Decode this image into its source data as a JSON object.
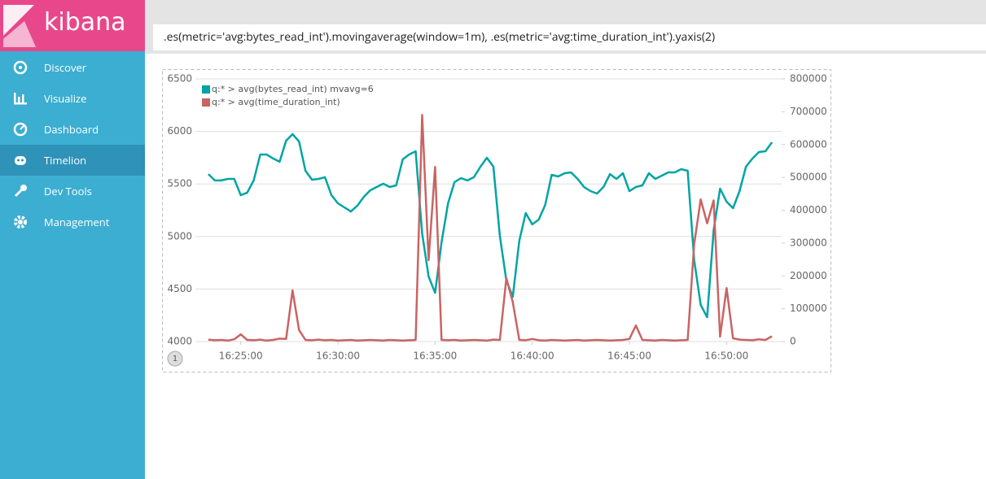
{
  "app": {
    "logo": "kibana",
    "nav": {
      "items": [
        "Discover",
        "Visualize",
        "Dashboard",
        "Timelion",
        "Dev Tools",
        "Management"
      ],
      "active_index": 3
    }
  },
  "query": ".es(metric='avg:bytes_read_int').movingaverage(window=1m), .es(metric='avg:time_duration_int').yaxis(2)",
  "sheet_index": "1",
  "chart_data": {
    "type": "line",
    "x": [
      "16:23:20",
      "16:23:40",
      "16:24:00",
      "16:24:20",
      "16:24:40",
      "16:25:00",
      "16:25:20",
      "16:25:40",
      "16:26:00",
      "16:26:20",
      "16:26:40",
      "16:27:00",
      "16:27:20",
      "16:27:40",
      "16:28:00",
      "16:28:20",
      "16:28:40",
      "16:29:00",
      "16:29:20",
      "16:29:40",
      "16:30:00",
      "16:30:20",
      "16:30:40",
      "16:31:00",
      "16:31:20",
      "16:31:40",
      "16:32:00",
      "16:32:20",
      "16:32:40",
      "16:33:00",
      "16:33:20",
      "16:33:40",
      "16:34:00",
      "16:34:20",
      "16:34:40",
      "16:35:00",
      "16:35:20",
      "16:35:40",
      "16:36:00",
      "16:36:20",
      "16:36:40",
      "16:37:00",
      "16:37:20",
      "16:37:40",
      "16:38:00",
      "16:38:20",
      "16:38:40",
      "16:39:00",
      "16:39:20",
      "16:39:40",
      "16:40:00",
      "16:40:20",
      "16:40:40",
      "16:41:00",
      "16:41:20",
      "16:41:40",
      "16:42:00",
      "16:42:20",
      "16:42:40",
      "16:43:00",
      "16:43:20",
      "16:43:40",
      "16:44:00",
      "16:44:20",
      "16:44:40",
      "16:45:00",
      "16:45:20",
      "16:45:40",
      "16:46:00",
      "16:46:20",
      "16:46:40",
      "16:47:00",
      "16:47:20",
      "16:47:40",
      "16:48:00",
      "16:48:20",
      "16:48:40",
      "16:49:00",
      "16:49:20",
      "16:49:40",
      "16:50:00",
      "16:50:20",
      "16:50:40",
      "16:51:00",
      "16:51:20",
      "16:51:40",
      "16:52:00",
      "16:52:20"
    ],
    "series": [
      {
        "name": "q:* > avg(bytes_read_int) mvavg=6",
        "color": "#01a4a4",
        "values": [
          5594,
          5533,
          5533,
          5548,
          5548,
          5393,
          5417,
          5533,
          5780,
          5780,
          5742,
          5711,
          5912,
          5974,
          5904,
          5625,
          5540,
          5548,
          5564,
          5393,
          5316,
          5277,
          5238,
          5293,
          5378,
          5440,
          5471,
          5502,
          5471,
          5486,
          5734,
          5780,
          5811,
          5029,
          4619,
          4464,
          4944,
          5316,
          5517,
          5556,
          5533,
          5564,
          5664,
          5749,
          5664,
          5006,
          4581,
          4426,
          4960,
          5223,
          5115,
          5161,
          5300,
          5587,
          5571,
          5602,
          5610,
          5548,
          5471,
          5432,
          5409,
          5471,
          5594,
          5548,
          5602,
          5432,
          5471,
          5486,
          5602,
          5548,
          5579,
          5610,
          5610,
          5641,
          5625,
          4774,
          4348,
          4232,
          5060,
          5455,
          5331,
          5269,
          5432,
          5664,
          5742,
          5804,
          5811,
          5896
        ]
      },
      {
        "name": "q:* > avg(time_duration_int)",
        "color": "#c96464",
        "axis": "y2",
        "values": [
          6000,
          4000,
          5000,
          3000,
          7000,
          22000,
          5000,
          4000,
          6000,
          3000,
          5000,
          9000,
          8000,
          156000,
          35000,
          5000,
          4000,
          6000,
          4000,
          5000,
          3000,
          4000,
          5000,
          3000,
          4000,
          5000,
          4000,
          3000,
          5000,
          4000,
          3000,
          4000,
          5000,
          690000,
          248000,
          532000,
          5000,
          4000,
          5000,
          3000,
          4000,
          5000,
          4000,
          3000,
          6000,
          5000,
          193000,
          120000,
          5000,
          4000,
          8000,
          4000,
          3000,
          5000,
          4000,
          3000,
          4000,
          5000,
          3000,
          4000,
          5000,
          4000,
          3000,
          4000,
          5000,
          8000,
          49000,
          5000,
          4000,
          3000,
          5000,
          4000,
          3000,
          4000,
          5000,
          297000,
          433000,
          360000,
          430000,
          15000,
          163000,
          10000,
          6000,
          5000,
          4000,
          7000,
          5000,
          16000
        ]
      }
    ],
    "xlim": [
      "16:22:40",
      "16:52:50"
    ],
    "xticks": [
      "16:25:00",
      "16:30:00",
      "16:35:00",
      "16:40:00",
      "16:45:00",
      "16:50:00"
    ],
    "ylim": [
      4000,
      6500
    ],
    "yticks": [
      4000,
      4500,
      5000,
      5500,
      6000,
      6500
    ],
    "y2lim": [
      0,
      800000
    ],
    "y2ticks": [
      0,
      100000,
      200000,
      300000,
      400000,
      500000,
      600000,
      700000,
      800000
    ],
    "grid": true,
    "legend": "top-left"
  }
}
